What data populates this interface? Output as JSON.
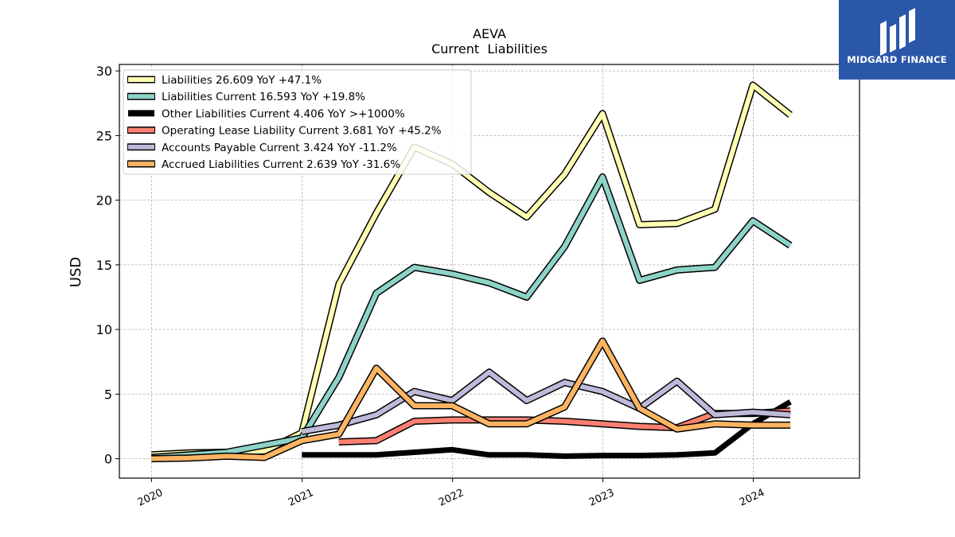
{
  "brand": {
    "name": "MIDGARD FINANCE",
    "logo_icon": "midgard-logo-icon"
  },
  "chart_data": {
    "type": "line",
    "title": "AEVA",
    "subtitle": "Current  Liabilities",
    "ylabel": "USD",
    "xlabel": "",
    "ylim": [
      -1.5,
      30.5
    ],
    "yticks": [
      0,
      5,
      10,
      15,
      20,
      25,
      30
    ],
    "xlim": [
      "2019-10-15",
      "2024-09-15"
    ],
    "xticks": [
      "2020",
      "2021",
      "2022",
      "2023",
      "2024"
    ],
    "grid": true,
    "legend_position": "top-left",
    "series": [
      {
        "name": "Liabilities",
        "legend": "Liabilities  26.609 YoY +47.1%",
        "color": "#ffffb3",
        "width": 6,
        "x": [
          "2020-01-01",
          "2020-04-01",
          "2020-07-01",
          "2020-10-01",
          "2020-12-31",
          "2021-03-31",
          "2021-06-30",
          "2021-09-30",
          "2021-12-31",
          "2022-03-31",
          "2022-06-30",
          "2022-09-30",
          "2022-12-31",
          "2023-03-31",
          "2023-06-30",
          "2023-09-30",
          "2023-12-31",
          "2024-03-31"
        ],
        "y": [
          0.3,
          0.45,
          0.5,
          0.6,
          2.0,
          13.5,
          19.0,
          24.1,
          22.8,
          20.6,
          18.7,
          22.0,
          26.7,
          18.1,
          18.2,
          19.3,
          28.9,
          26.6
        ]
      },
      {
        "name": "Liabilities Current",
        "legend": "Liabilities Current  16.593 YoY +19.8%",
        "color": "#8dd3c7",
        "width": 6,
        "x": [
          "2020-01-01",
          "2020-07-01",
          "2020-12-31",
          "2021-03-31",
          "2021-06-30",
          "2021-09-30",
          "2021-12-31",
          "2022-03-31",
          "2022-06-30",
          "2022-09-30",
          "2022-12-31",
          "2023-03-31",
          "2023-06-30",
          "2023-09-30",
          "2023-12-31",
          "2024-03-31"
        ],
        "y": [
          0.1,
          0.5,
          1.6,
          6.3,
          12.8,
          14.8,
          14.3,
          13.6,
          12.5,
          16.4,
          21.8,
          13.8,
          14.6,
          14.8,
          18.4,
          16.5
        ]
      },
      {
        "name": "Other Liabilities Current",
        "legend": "Other Liabilities Current  4.406 YoY >+1000%",
        "color": "#000000",
        "width": 7,
        "x": [
          "2020-12-31",
          "2021-03-31",
          "2021-06-30",
          "2021-09-30",
          "2021-12-31",
          "2022-03-31",
          "2022-06-30",
          "2022-09-30",
          "2022-12-31",
          "2023-03-31",
          "2023-06-30",
          "2023-09-30",
          "2023-12-31",
          "2024-03-31"
        ],
        "y": [
          0.3,
          0.3,
          0.3,
          0.5,
          0.7,
          0.3,
          0.3,
          0.2,
          0.25,
          0.25,
          0.3,
          0.45,
          2.7,
          4.4
        ]
      },
      {
        "name": "Operating Lease Liability Current",
        "legend": "Operating Lease Liability Current  3.681 YoY +45.2%",
        "color": "#fb8072",
        "width": 6,
        "x": [
          "2021-03-31",
          "2021-06-30",
          "2021-09-30",
          "2021-12-31",
          "2022-03-31",
          "2022-06-30",
          "2022-09-30",
          "2022-12-31",
          "2023-03-31",
          "2023-06-30",
          "2023-09-30",
          "2023-12-31",
          "2024-03-31"
        ],
        "y": [
          1.3,
          1.4,
          2.9,
          3.0,
          3.0,
          3.0,
          2.9,
          2.7,
          2.5,
          2.4,
          3.5,
          3.5,
          3.7
        ]
      },
      {
        "name": "Accounts Payable Current",
        "legend": "Accounts Payable Current  3.424 YoY -11.2%",
        "color": "#bebada",
        "width": 6,
        "x": [
          "2020-12-31",
          "2021-03-31",
          "2021-06-30",
          "2021-09-30",
          "2021-12-31",
          "2022-03-31",
          "2022-06-30",
          "2022-09-30",
          "2022-12-31",
          "2023-03-31",
          "2023-06-30",
          "2023-09-30",
          "2023-12-31",
          "2024-03-31"
        ],
        "y": [
          2.1,
          2.6,
          3.4,
          5.2,
          4.5,
          6.7,
          4.5,
          5.9,
          5.2,
          3.9,
          6.0,
          3.4,
          3.6,
          3.4
        ]
      },
      {
        "name": "Accrued Liabilities Current",
        "legend": "Accrued Liabilities Current  2.639 YoY -31.6%",
        "color": "#fdb462",
        "width": 6,
        "x": [
          "2020-01-01",
          "2020-04-01",
          "2020-07-01",
          "2020-10-01",
          "2020-12-31",
          "2021-03-31",
          "2021-06-30",
          "2021-09-30",
          "2021-12-31",
          "2022-03-31",
          "2022-06-30",
          "2022-09-30",
          "2022-12-31",
          "2023-03-31",
          "2023-06-30",
          "2023-09-30",
          "2023-12-31",
          "2024-03-31"
        ],
        "y": [
          0.0,
          0.05,
          0.2,
          0.1,
          1.4,
          1.9,
          7.0,
          4.1,
          4.1,
          2.7,
          2.7,
          4.0,
          9.1,
          3.9,
          2.3,
          2.7,
          2.6,
          2.6
        ]
      }
    ]
  }
}
